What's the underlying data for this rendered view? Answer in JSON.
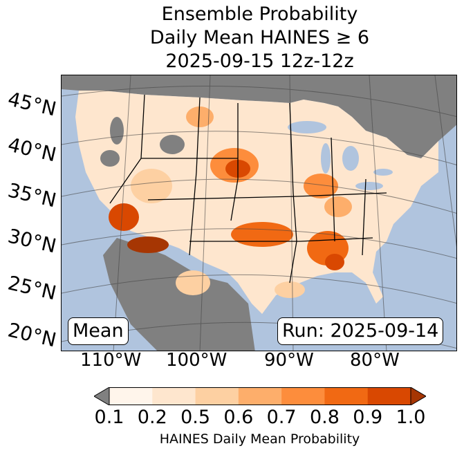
{
  "title": {
    "line1": "Ensemble Probability",
    "line2": "Daily Mean HAINES ≥ 6",
    "line3": "2025-09-15 12z-12z"
  },
  "map": {
    "ocean_color": "#b0c4de",
    "nodata_color": "#808080",
    "lat_labels": [
      "45°N",
      "40°N",
      "35°N",
      "30°N",
      "25°N",
      "20°N"
    ],
    "lon_labels": [
      "110°W",
      "100°W",
      "90°W",
      "80°W"
    ],
    "mean_label": "Mean",
    "run_label": "Run: 2025-09-14"
  },
  "colorbar": {
    "tick_labels": [
      "0.1",
      "0.2",
      "0.5",
      "0.6",
      "0.7",
      "0.8",
      "0.9",
      "1.0"
    ],
    "colors": [
      "#fff5eb",
      "#fee6ce",
      "#fdd0a2",
      "#fdae6b",
      "#fd8d3c",
      "#f16913",
      "#d94801",
      "#a63603"
    ],
    "under_color": "#808080",
    "label": "HAINES Daily Mean Probability"
  }
}
